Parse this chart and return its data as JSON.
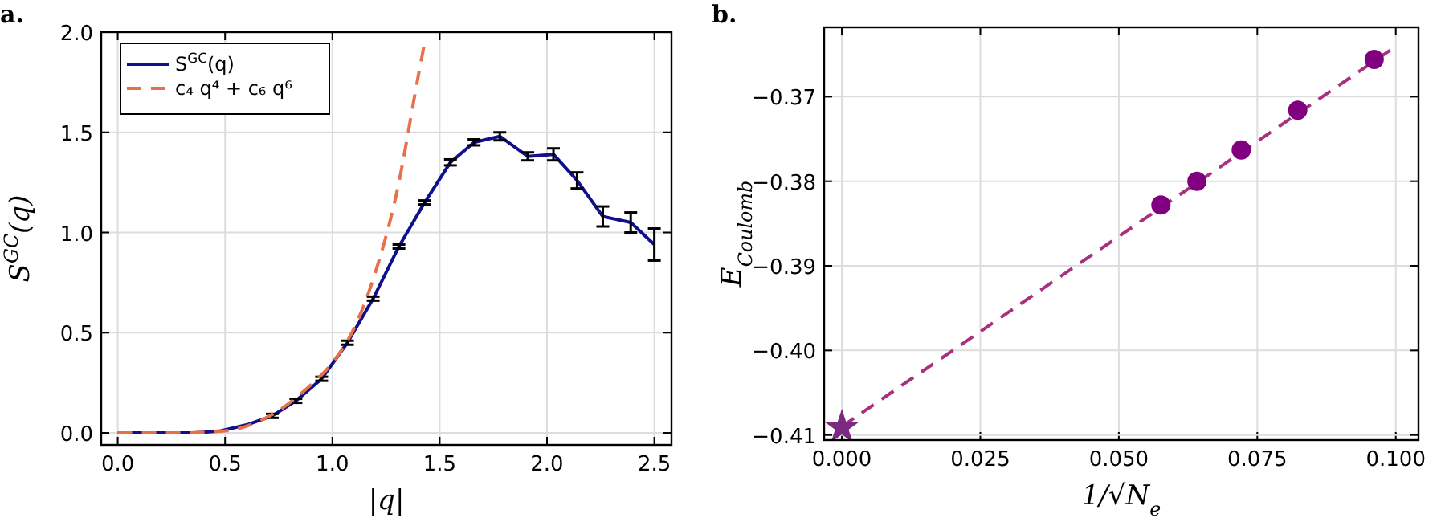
{
  "chart_data": [
    {
      "type": "line",
      "title": "a.",
      "xlabel": "|q|",
      "ylabel": "S$^{GC}$(q)",
      "xlim": [
        -0.077,
        2.58
      ],
      "ylim": [
        -0.06,
        2.0
      ],
      "xticks": [
        {
          "value": 0,
          "label": "0.0"
        },
        {
          "value": 0.5,
          "label": "0.5"
        },
        {
          "value": 1,
          "label": "1.0"
        },
        {
          "value": 1.5,
          "label": "1.5"
        },
        {
          "value": 2,
          "label": "2.0"
        },
        {
          "value": 2.5,
          "label": "2.5"
        }
      ],
      "yticks": [
        {
          "value": 0,
          "label": "0.0"
        },
        {
          "value": 0.5,
          "label": "0.5"
        },
        {
          "value": 1,
          "label": "1.0"
        },
        {
          "value": 1.5,
          "label": "1.5"
        },
        {
          "value": 2,
          "label": "2.0"
        }
      ],
      "grid": true,
      "legend": "top left",
      "series": [
        {
          "name": "S$^{GC}$(q)",
          "color": "#10108c",
          "x": [
            0,
            0.12,
            0.24,
            0.36,
            0.48,
            0.6,
            0.72,
            0.83,
            0.95,
            1.07,
            1.19,
            1.31,
            1.43,
            1.55,
            1.66,
            1.78,
            1.91,
            2.03,
            2.14,
            2.26,
            2.39,
            2.5
          ],
          "values": [
            0,
            0,
            0,
            0,
            0.01,
            0.04,
            0.085,
            0.16,
            0.27,
            0.45,
            0.67,
            0.93,
            1.15,
            1.35,
            1.45,
            1.48,
            1.38,
            1.39,
            1.26,
            1.08,
            1.05,
            0.94
          ],
          "errors": [
            null,
            null,
            null,
            null,
            null,
            null,
            0.01,
            0.01,
            0.01,
            0.01,
            0.01,
            0.01,
            0.01,
            0.015,
            0.015,
            0.02,
            0.02,
            0.03,
            0.04,
            0.05,
            0.05,
            0.08
          ]
        },
        {
          "name": "c₄ q⁴ + c₆ q⁶",
          "color": "#e8704a",
          "line_style": "dashed",
          "x": [
            0,
            0.3,
            0.5,
            0.7,
            0.9,
            1.0,
            1.1,
            1.2,
            1.3,
            1.4,
            1.43
          ],
          "values": [
            0,
            0,
            0.01,
            0.08,
            0.24,
            0.35,
            0.52,
            0.8,
            1.2,
            1.78,
            1.95
          ]
        }
      ]
    },
    {
      "type": "scatter",
      "title": "b.",
      "xlabel": "1/√N$_{e}$",
      "ylabel": "E$_{Coulomb}$",
      "xlim": [
        -0.0032,
        0.1041
      ],
      "ylim": [
        -0.4106,
        -0.3618
      ],
      "xticks": [
        {
          "value": 0,
          "label": "0.000"
        },
        {
          "value": 0.025,
          "label": "0.025"
        },
        {
          "value": 0.05,
          "label": "0.050"
        },
        {
          "value": 0.075,
          "label": "0.075"
        },
        {
          "value": 0.1,
          "label": "0.100"
        }
      ],
      "yticks": [
        {
          "value": -0.41,
          "label": "−0.41"
        },
        {
          "value": -0.4,
          "label": "−0.40"
        },
        {
          "value": -0.39,
          "label": "−0.39"
        },
        {
          "value": -0.38,
          "label": "−0.38"
        },
        {
          "value": -0.37,
          "label": "−0.37"
        }
      ],
      "grid": true,
      "series": [
        {
          "type": "line",
          "color": "#a8307f",
          "line_style": "dashed",
          "x": [
            0,
            0.099
          ],
          "values": [
            -0.409,
            -0.3645
          ]
        },
        {
          "color": "#800080",
          "marker": "circle",
          "x": [
            0.0576,
            0.0641,
            0.0721,
            0.0823,
            0.0961
          ],
          "values": [
            -0.3828,
            -0.38,
            -0.3763,
            -0.3716,
            -0.3656
          ]
        },
        {
          "color": "#7a2a80",
          "marker": "star",
          "x": [
            0
          ],
          "values": [
            -0.4091
          ]
        }
      ]
    }
  ]
}
